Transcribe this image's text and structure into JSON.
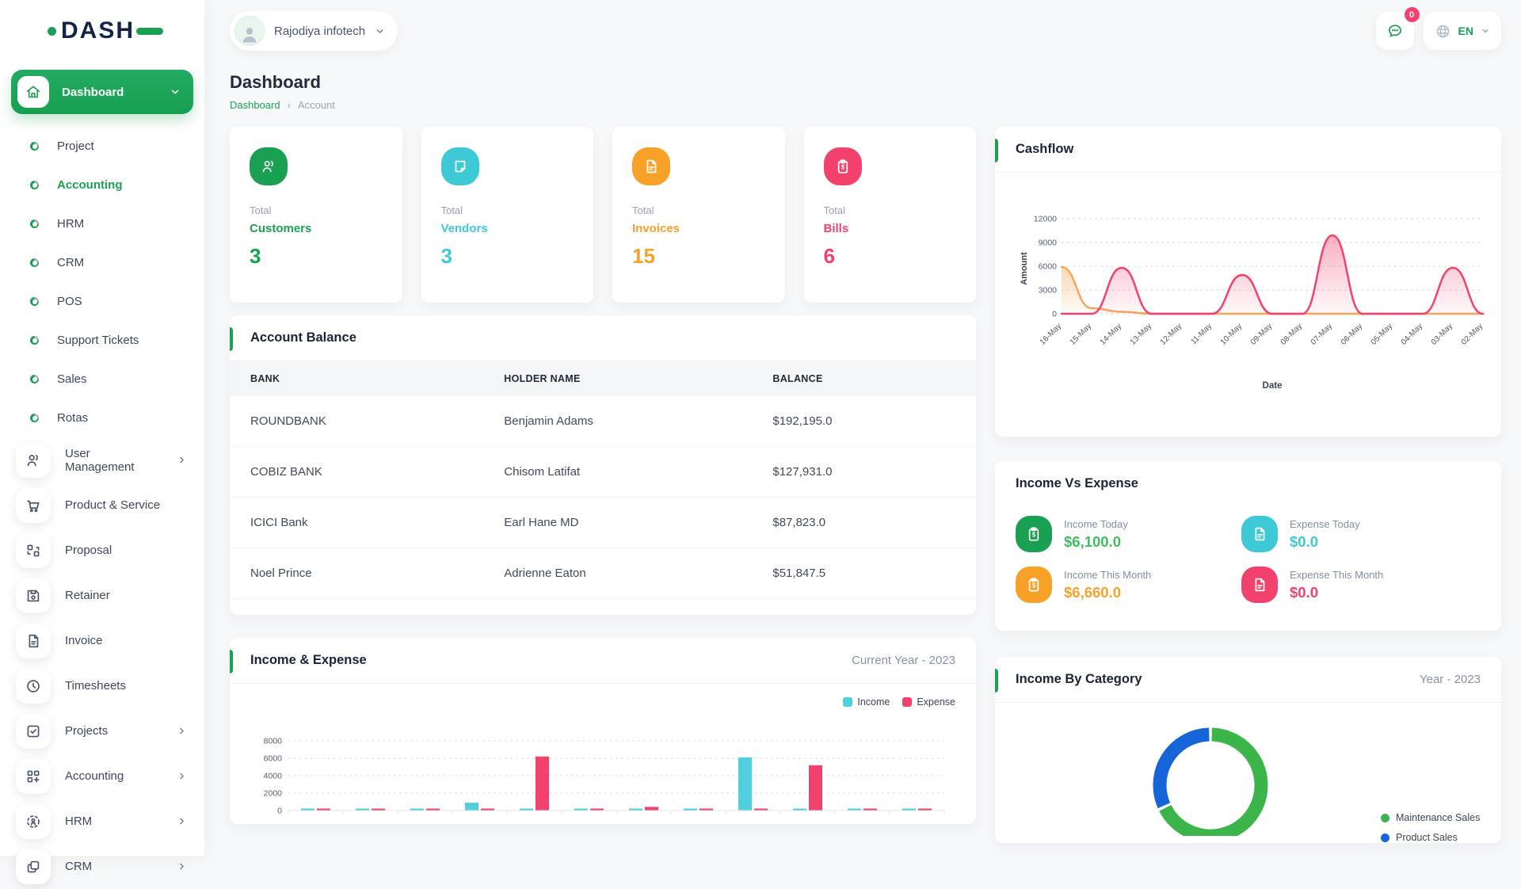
{
  "brand": {
    "logo_text": "DASH"
  },
  "topbar": {
    "company": "Rajodiya infotech",
    "chat_badge": "0",
    "language": "EN"
  },
  "sidebar": {
    "dashboard_label": "Dashboard",
    "bullet_items": [
      {
        "label": "Project",
        "active": false
      },
      {
        "label": "Accounting",
        "active": true
      },
      {
        "label": "HRM",
        "active": false
      },
      {
        "label": "CRM",
        "active": false
      },
      {
        "label": "POS",
        "active": false
      },
      {
        "label": "Support Tickets",
        "active": false
      },
      {
        "label": "Sales",
        "active": false
      },
      {
        "label": "Rotas",
        "active": false
      }
    ],
    "icon_items": [
      {
        "label": "User Management",
        "icon": "users",
        "chevron": true
      },
      {
        "label": "Product & Service",
        "icon": "cart",
        "chevron": false
      },
      {
        "label": "Proposal",
        "icon": "proposal",
        "chevron": false
      },
      {
        "label": "Retainer",
        "icon": "retainer",
        "chevron": false
      },
      {
        "label": "Invoice",
        "icon": "invoice",
        "chevron": false
      },
      {
        "label": "Timesheets",
        "icon": "clock",
        "chevron": false
      },
      {
        "label": "Projects",
        "icon": "projects",
        "chevron": true
      },
      {
        "label": "Accounting",
        "icon": "accounting",
        "chevron": true
      },
      {
        "label": "HRM",
        "icon": "hrm",
        "chevron": true
      },
      {
        "label": "CRM",
        "icon": "crm",
        "chevron": true
      }
    ]
  },
  "page": {
    "title": "Dashboard",
    "breadcrumb": {
      "root": "Dashboard",
      "sep": "›",
      "current": "Account"
    }
  },
  "stats": [
    {
      "label": "Total",
      "name": "Customers",
      "value": "3",
      "color": "#1aa053",
      "icon": "users"
    },
    {
      "label": "Total",
      "name": "Vendors",
      "value": "3",
      "color": "#3ec9d6",
      "icon": "note"
    },
    {
      "label": "Total",
      "name": "Invoices",
      "value": "15",
      "color": "#f8a128",
      "icon": "file"
    },
    {
      "label": "Total",
      "name": "Bills",
      "value": "6",
      "color": "#f1416c",
      "icon": "clipboard"
    }
  ],
  "account_balance": {
    "title": "Account Balance",
    "columns": [
      "BANK",
      "HOLDER NAME",
      "BALANCE"
    ],
    "rows": [
      [
        "ROUNDBANK",
        "Benjamin Adams",
        "$192,195.0"
      ],
      [
        "COBIZ BANK",
        "Chisom Latifat",
        "$127,931.0"
      ],
      [
        "ICICI Bank",
        "Earl Hane MD",
        "$87,823.0"
      ],
      [
        "Noel Prince",
        "Adrienne Eaton",
        "$51,847.5"
      ]
    ]
  },
  "income_vs_expense": {
    "title": "Income Vs Expense",
    "items": [
      {
        "label": "Income Today",
        "value": "$6,100.0",
        "color": "#3dbd5d",
        "icon_bg": "#1aa053",
        "icon": "clipboard"
      },
      {
        "label": "Expense Today",
        "value": "$0.0",
        "color": "#3ec9d6",
        "icon_bg": "#3ec9d6",
        "icon": "file"
      },
      {
        "label": "Income This Month",
        "value": "$6,660.0",
        "color": "#f8a128",
        "icon_bg": "#f8a128",
        "icon": "clipboard"
      },
      {
        "label": "Expense This Month",
        "value": "$0.0",
        "color": "#f1416c",
        "icon_bg": "#f1416c",
        "icon": "file"
      }
    ]
  },
  "chart_data": [
    {
      "id": "cashflow",
      "type": "area",
      "title": "Cashflow",
      "xlabel": "Date",
      "ylabel": "Amount",
      "x": [
        "16-May",
        "15-May",
        "14-May",
        "13-May",
        "12-May",
        "11-May",
        "10-May",
        "09-May",
        "08-May",
        "07-May",
        "06-May",
        "05-May",
        "04-May",
        "03-May",
        "02-May"
      ],
      "yticks": [
        0,
        3000,
        6000,
        9000,
        12000
      ],
      "ylim": [
        0,
        12000
      ],
      "grid": "dashed-horizontal",
      "series": [
        {
          "name": "series-orange",
          "color": "#f5a65a",
          "values": [
            5900,
            700,
            250,
            0,
            0,
            0,
            0,
            0,
            0,
            0,
            0,
            0,
            0,
            0,
            0
          ]
        },
        {
          "name": "series-pink",
          "color": "#f1416c",
          "values": [
            0,
            0,
            5800,
            0,
            0,
            0,
            4900,
            0,
            0,
            9900,
            0,
            0,
            0,
            5800,
            0
          ]
        }
      ]
    },
    {
      "id": "income_expense",
      "type": "bar",
      "title": "Income & Expense",
      "subtitle": "Current Year - 2023",
      "yticks": [
        0,
        2000,
        4000,
        6000,
        8000
      ],
      "ylim": [
        0,
        8000
      ],
      "grid": "dashed-horizontal",
      "legend_position": "top-right",
      "categories": [
        "",
        "",
        "",
        "",
        "",
        "",
        "",
        "",
        "",
        "",
        "",
        ""
      ],
      "categories_visible": false,
      "series": [
        {
          "name": "Income",
          "color": "#4fd0dc",
          "values": [
            230,
            100,
            100,
            900,
            100,
            100,
            170,
            100,
            6100,
            100,
            100,
            100
          ]
        },
        {
          "name": "Expense",
          "color": "#f1426d",
          "values": [
            130,
            100,
            100,
            100,
            6200,
            100,
            420,
            100,
            100,
            5200,
            100,
            100
          ]
        }
      ]
    },
    {
      "id": "income_by_category",
      "type": "donut",
      "title": "Income By Category",
      "subtitle": "Year - 2023",
      "labels": [
        "Maintenance Sales",
        "Product Sales"
      ],
      "values": [
        68,
        32
      ],
      "colors": [
        "#3bb54a",
        "#1565d8"
      ],
      "legend_position": "right"
    }
  ]
}
